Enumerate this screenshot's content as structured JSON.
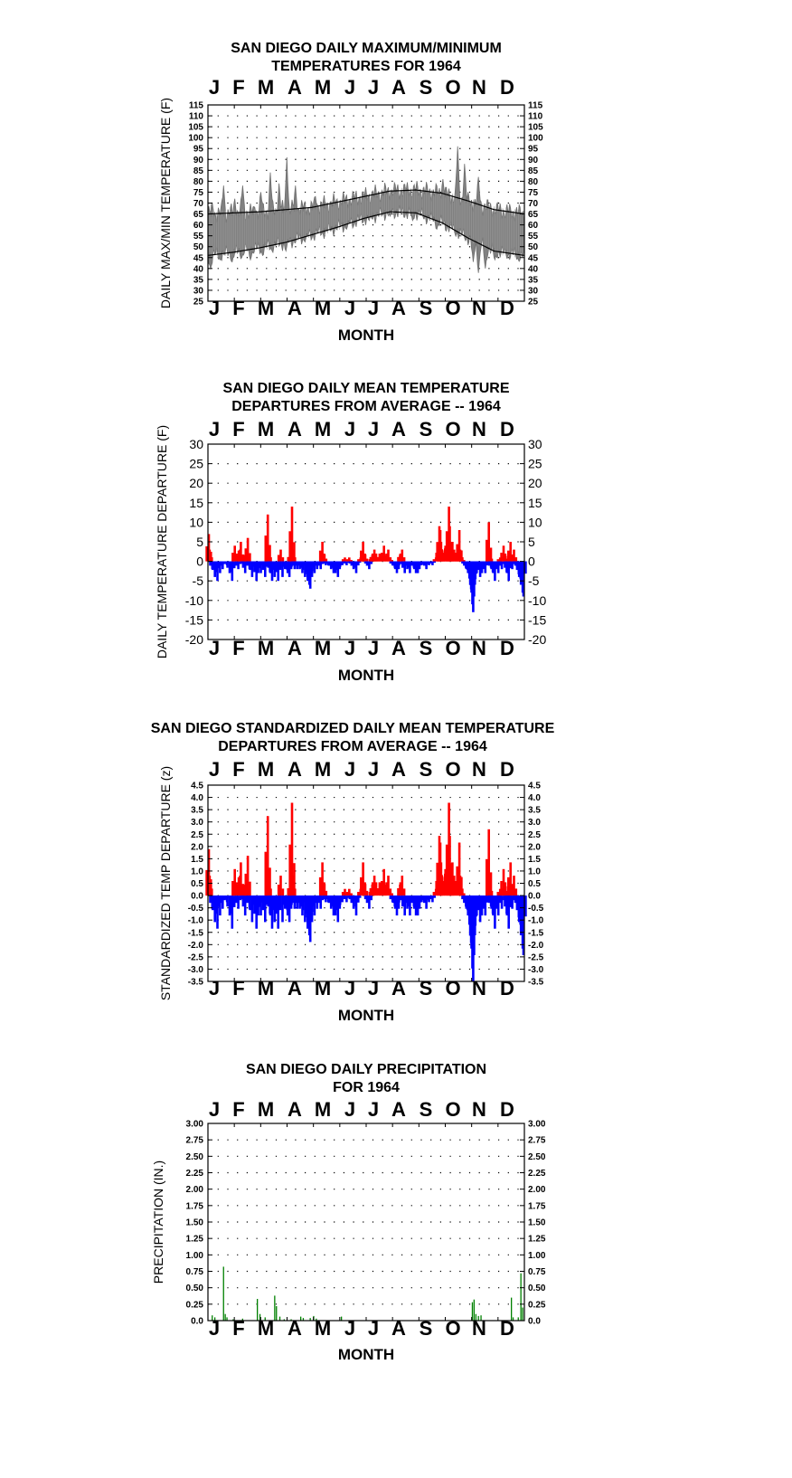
{
  "chart_data": [
    {
      "type": "area",
      "title": [
        "SAN DIEGO DAILY MAXIMUM/MINIMUM",
        "TEMPERATURES FOR 1964"
      ],
      "ylabel": "DAILY MAX/MIN TEMPERATURE (F)",
      "xlabel": "MONTH",
      "months": [
        "J",
        "F",
        "M",
        "A",
        "M",
        "J",
        "J",
        "A",
        "S",
        "O",
        "N",
        "D"
      ],
      "ylim": [
        25,
        115
      ],
      "yticks": [
        "115",
        "110",
        "105",
        "100",
        "95",
        "90",
        "85",
        "80",
        "75",
        "70",
        "65",
        "60",
        "55",
        "50",
        "45",
        "40",
        "35",
        "30",
        "25"
      ],
      "grid": true,
      "colors": {
        "band": "#808080",
        "normals": "#000000"
      },
      "series": [
        {
          "role": "normal_max",
          "x": [
            0,
            30,
            60,
            90,
            120,
            150,
            180,
            210,
            240,
            270,
            300,
            330,
            365
          ],
          "values": [
            65,
            65.5,
            66,
            67,
            68,
            70.5,
            73,
            75.5,
            76,
            74.5,
            71,
            67,
            65
          ]
        },
        {
          "role": "normal_min",
          "x": [
            0,
            30,
            60,
            90,
            120,
            150,
            180,
            210,
            240,
            270,
            300,
            330,
            365
          ],
          "values": [
            46,
            47.5,
            49.5,
            52,
            55.5,
            59,
            63,
            66,
            65.5,
            61,
            54,
            48,
            46
          ]
        },
        {
          "role": "daily_max_peaks",
          "x": [
            5,
            18,
            31,
            40,
            54,
            61,
            72,
            82,
            91,
            101,
            124,
            153,
            182,
            207,
            230,
            255,
            271,
            288,
            296,
            312,
            330,
            351,
            360
          ],
          "values": [
            70,
            78,
            72,
            78,
            68,
            75,
            84,
            79,
            91,
            78,
            73,
            69,
            73,
            74,
            76,
            72,
            81,
            96,
            88,
            82,
            66,
            60,
            65
          ]
        },
        {
          "role": "daily_min_troughs",
          "x": [
            3,
            14,
            28,
            39,
            49,
            63,
            74,
            90,
            112,
            133,
            160,
            186,
            210,
            236,
            264,
            287,
            306,
            312,
            320,
            331,
            345,
            358
          ],
          "values": [
            40,
            44,
            43,
            45,
            44,
            46,
            48,
            48,
            53,
            56,
            58,
            62,
            64,
            62,
            58,
            56,
            43,
            38,
            40,
            44,
            46,
            44
          ]
        }
      ]
    },
    {
      "type": "bar",
      "title": [
        "SAN DIEGO DAILY MEAN TEMPERATURE",
        "DEPARTURES FROM AVERAGE -- 1964"
      ],
      "ylabel": "DAILY TEMPERATURE DEPARTURE (F)",
      "xlabel": "MONTH",
      "months": [
        "J",
        "F",
        "M",
        "A",
        "M",
        "J",
        "J",
        "A",
        "S",
        "O",
        "N",
        "D"
      ],
      "ylim": [
        -20,
        30
      ],
      "yticks": [
        "30",
        "25",
        "20",
        "15",
        "10",
        "5",
        "0",
        "-5",
        "-10",
        "-15",
        "-20"
      ],
      "grid": true,
      "colors": {
        "positive": "#ff0000",
        "negative": "#0000ff"
      },
      "events": [
        [
          1,
          7
        ],
        [
          2,
          3
        ],
        [
          5,
          -2
        ],
        [
          8,
          -4
        ],
        [
          11,
          -5
        ],
        [
          14,
          -3
        ],
        [
          17,
          -2
        ],
        [
          22,
          -1
        ],
        [
          25,
          -3
        ],
        [
          28,
          -5
        ],
        [
          31,
          4
        ],
        [
          33,
          2
        ],
        [
          35,
          -2
        ],
        [
          37,
          3
        ],
        [
          38,
          5
        ],
        [
          41,
          -1
        ],
        [
          43,
          -3
        ],
        [
          45,
          3
        ],
        [
          46,
          6
        ],
        [
          48,
          -2
        ],
        [
          51,
          -4
        ],
        [
          54,
          -2
        ],
        [
          56,
          -5
        ],
        [
          58,
          -3
        ],
        [
          61,
          -3
        ],
        [
          63,
          -1
        ],
        [
          66,
          -4
        ],
        [
          69,
          12
        ],
        [
          70,
          3
        ],
        [
          72,
          -3
        ],
        [
          74,
          -5
        ],
        [
          77,
          -4
        ],
        [
          79,
          -2
        ],
        [
          81,
          -5
        ],
        [
          84,
          3
        ],
        [
          86,
          -4
        ],
        [
          89,
          -2
        ],
        [
          92,
          -3
        ],
        [
          94,
          -4
        ],
        [
          95,
          2
        ],
        [
          96,
          -2
        ],
        [
          97,
          14
        ],
        [
          98,
          3
        ],
        [
          100,
          -2
        ],
        [
          103,
          -2
        ],
        [
          106,
          -2
        ],
        [
          109,
          -3
        ],
        [
          112,
          -4
        ],
        [
          115,
          -5
        ],
        [
          117,
          -6
        ],
        [
          118,
          -7
        ],
        [
          120,
          -4
        ],
        [
          123,
          -3
        ],
        [
          126,
          -2
        ],
        [
          128,
          -1
        ],
        [
          130,
          -2
        ],
        [
          132,
          5
        ],
        [
          134,
          2
        ],
        [
          136,
          -1
        ],
        [
          139,
          -1
        ],
        [
          142,
          -2
        ],
        [
          145,
          -3
        ],
        [
          147,
          -3
        ],
        [
          150,
          -4
        ],
        [
          152,
          -2
        ],
        [
          155,
          -1
        ],
        [
          158,
          1
        ],
        [
          160,
          -1
        ],
        [
          163,
          1
        ],
        [
          166,
          -1
        ],
        [
          168,
          -2
        ],
        [
          171,
          -3
        ],
        [
          173,
          -1
        ],
        [
          176,
          1
        ],
        [
          178,
          1
        ],
        [
          179,
          5
        ],
        [
          181,
          2
        ],
        [
          184,
          -1
        ],
        [
          186,
          -2
        ],
        [
          189,
          1
        ],
        [
          190,
          2
        ],
        [
          192,
          3
        ],
        [
          194,
          2
        ],
        [
          196,
          1
        ],
        [
          198,
          2
        ],
        [
          201,
          2
        ],
        [
          203,
          4
        ],
        [
          206,
          2
        ],
        [
          208,
          3
        ],
        [
          210,
          1
        ],
        [
          213,
          -1
        ],
        [
          216,
          -2
        ],
        [
          218,
          -3
        ],
        [
          220,
          -2
        ],
        [
          222,
          2
        ],
        [
          224,
          3
        ],
        [
          227,
          -3
        ],
        [
          230,
          -2
        ],
        [
          233,
          -3
        ],
        [
          236,
          -1
        ],
        [
          238,
          -2
        ],
        [
          240,
          -3
        ],
        [
          242,
          -3
        ],
        [
          244,
          -2
        ],
        [
          246,
          -1
        ],
        [
          249,
          -1
        ],
        [
          252,
          -2
        ],
        [
          255,
          -1
        ],
        [
          259,
          -1
        ],
        [
          263,
          1
        ],
        [
          266,
          4
        ],
        [
          267,
          9
        ],
        [
          268,
          8
        ],
        [
          269,
          5
        ],
        [
          270,
          3
        ],
        [
          272,
          2
        ],
        [
          274,
          4
        ],
        [
          276,
          6
        ],
        [
          278,
          14
        ],
        [
          279,
          9
        ],
        [
          280,
          4
        ],
        [
          282,
          5
        ],
        [
          284,
          3
        ],
        [
          286,
          2
        ],
        [
          288,
          4
        ],
        [
          290,
          8
        ],
        [
          291,
          3
        ],
        [
          293,
          1
        ],
        [
          296,
          -1
        ],
        [
          298,
          -2
        ],
        [
          300,
          -3
        ],
        [
          302,
          -4
        ],
        [
          304,
          -8
        ],
        [
          305,
          -11
        ],
        [
          306,
          -13
        ],
        [
          307,
          -9
        ],
        [
          308,
          -6
        ],
        [
          310,
          -3
        ],
        [
          312,
          -2
        ],
        [
          314,
          -4
        ],
        [
          316,
          -3
        ],
        [
          318,
          -2
        ],
        [
          320,
          -3
        ],
        [
          322,
          -1
        ],
        [
          324,
          10
        ],
        [
          325,
          2
        ],
        [
          327,
          -2
        ],
        [
          329,
          -3
        ],
        [
          331,
          -5
        ],
        [
          333,
          -2
        ],
        [
          335,
          -3
        ],
        [
          337,
          1
        ],
        [
          339,
          -2
        ],
        [
          341,
          4
        ],
        [
          343,
          2
        ],
        [
          345,
          -3
        ],
        [
          347,
          -5
        ],
        [
          349,
          5
        ],
        [
          351,
          -2
        ],
        [
          353,
          3
        ],
        [
          355,
          -1
        ],
        [
          357,
          -2
        ],
        [
          359,
          -4
        ],
        [
          361,
          -6
        ],
        [
          363,
          -8
        ],
        [
          364,
          -9
        ]
      ]
    },
    {
      "type": "bar",
      "title": [
        "SAN DIEGO STANDARDIZED DAILY MEAN TEMPERATURE",
        "DEPARTURES FROM AVERAGE -- 1964"
      ],
      "ylabel": "STANDARDIZED TEMP DEPARTURE (z)",
      "xlabel": "MONTH",
      "months": [
        "J",
        "F",
        "M",
        "A",
        "M",
        "J",
        "J",
        "A",
        "S",
        "O",
        "N",
        "D"
      ],
      "ylim": [
        -3.5,
        4.5
      ],
      "yticks": [
        "4.5",
        "4.0",
        "3.5",
        "3.0",
        "2.5",
        "2.0",
        "1.5",
        "1.0",
        "0.5",
        "0.0",
        "-0.5",
        "-1.0",
        "-1.5",
        "-2.0",
        "-2.5",
        "-3.0",
        "-3.5"
      ],
      "grid": true,
      "colors": {
        "positive": "#ff0000",
        "negative": "#0000ff"
      },
      "value_scale": 0.27
    },
    {
      "type": "bar",
      "title": [
        "SAN DIEGO DAILY PRECIPITATION",
        "FOR 1964"
      ],
      "ylabel": "PRECIPITATION (IN.)",
      "xlabel": "MONTH",
      "months": [
        "J",
        "F",
        "M",
        "A",
        "M",
        "J",
        "J",
        "A",
        "S",
        "O",
        "N",
        "D"
      ],
      "ylim": [
        0,
        3
      ],
      "yticks": [
        "3.00",
        "2.75",
        "2.50",
        "2.25",
        "2.00",
        "1.75",
        "1.50",
        "1.25",
        "1.00",
        "0.75",
        "0.50",
        "0.25",
        "0.0"
      ],
      "grid": true,
      "colors": {
        "bars": "#008000"
      },
      "events": [
        [
          5,
          0.08
        ],
        [
          8,
          0.05
        ],
        [
          18,
          0.82
        ],
        [
          20,
          0.1
        ],
        [
          22,
          0.05
        ],
        [
          29,
          0.02
        ],
        [
          40,
          0.03
        ],
        [
          57,
          0.33
        ],
        [
          60,
          0.1
        ],
        [
          66,
          0.05
        ],
        [
          77,
          0.38
        ],
        [
          79,
          0.22
        ],
        [
          83,
          0.06
        ],
        [
          88,
          0.02
        ],
        [
          96,
          0.02
        ],
        [
          107,
          0.06
        ],
        [
          110,
          0.04
        ],
        [
          118,
          0.04
        ],
        [
          122,
          0.07
        ],
        [
          125,
          0.03
        ],
        [
          154,
          0.06
        ],
        [
          305,
          0.28
        ],
        [
          307,
          0.32
        ],
        [
          309,
          0.1
        ],
        [
          312,
          0.07
        ],
        [
          315,
          0.08
        ],
        [
          350,
          0.35
        ],
        [
          352,
          0.05
        ],
        [
          358,
          0.05
        ],
        [
          361,
          0.72
        ],
        [
          363,
          0.2
        ]
      ]
    }
  ]
}
